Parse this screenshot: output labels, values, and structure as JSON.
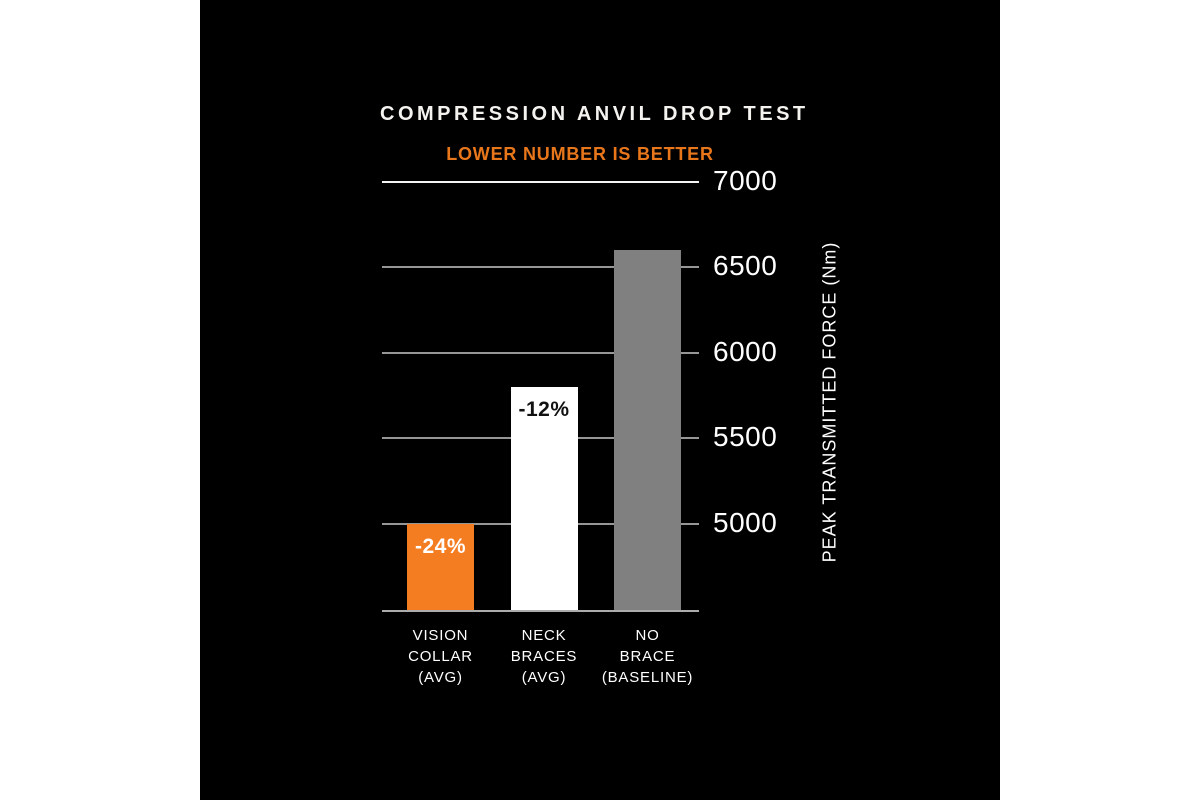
{
  "chart_data": {
    "type": "bar",
    "title": "COMPRESSION ANVIL DROP TEST",
    "subtitle": "LOWER NUMBER IS BETTER",
    "ylabel": "PEAK TRANSMITTED FORCE (Nm)",
    "categories": [
      [
        "VISION",
        "COLLAR",
        "(AVG)"
      ],
      [
        "NECK",
        "BRACES",
        "(AVG)"
      ],
      [
        "NO",
        "BRACE",
        "(BASELINE)"
      ]
    ],
    "category_slugs": [
      "vision-collar-avg",
      "neck-braces-avg",
      "no-brace-baseline"
    ],
    "values": [
      5000,
      5800,
      6600
    ],
    "bar_labels": [
      "-24%",
      "-12%",
      ""
    ],
    "bar_colors": [
      "#f47c21",
      "#ffffff",
      "#808080"
    ],
    "bar_label_colors": [
      "#ffffff",
      "#111111",
      ""
    ],
    "yticks": [
      5000,
      5500,
      6000,
      6500,
      7000
    ],
    "ylim": [
      4490,
      7000
    ],
    "grid": "horizontal",
    "legend": "none",
    "background": "#000000"
  },
  "colors": {
    "page_background": "#ffffff",
    "canvas_background": "#000000",
    "accent_orange": "#f47c21",
    "bar_white": "#ffffff",
    "bar_gray": "#808080",
    "gridline_gray": "#969696",
    "gridline_top_white": "#f4f4f4",
    "baseline_gray": "#acacac",
    "text_white": "#ffffff"
  }
}
